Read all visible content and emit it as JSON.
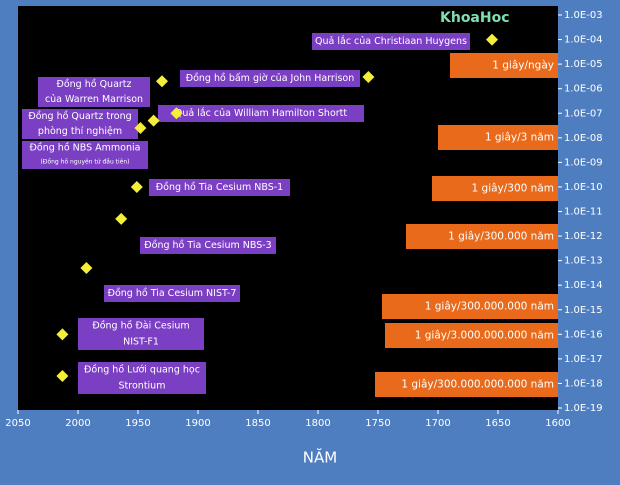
{
  "chart_data": {
    "type": "scatter",
    "x_label": "NĂM",
    "watermark": "KhoaHoc",
    "log_y": true,
    "xlim": [
      2050,
      1600
    ],
    "xticks": [
      2050,
      2000,
      1950,
      1900,
      1850,
      1800,
      1750,
      1700,
      1650,
      1600
    ],
    "ylim": [
      1e-19,
      0.001
    ],
    "yticks": [
      {
        "value": 0.001,
        "label": "1.0E-03"
      },
      {
        "value": 0.0001,
        "label": "1.0E-04"
      },
      {
        "value": 1e-05,
        "label": "1.0E-05"
      },
      {
        "value": 1e-06,
        "label": "1.0E-06"
      },
      {
        "value": 1e-07,
        "label": "1.0E-07"
      },
      {
        "value": 1e-08,
        "label": "1.0E-08"
      },
      {
        "value": 1e-09,
        "label": "1.0E-09"
      },
      {
        "value": 1e-10,
        "label": "1.0E-10"
      },
      {
        "value": 1e-11,
        "label": "1.0E-11"
      },
      {
        "value": 1e-12,
        "label": "1.0E-12"
      },
      {
        "value": 1e-13,
        "label": "1.0E-13"
      },
      {
        "value": 1e-14,
        "label": "1.0E-14"
      },
      {
        "value": 1e-15,
        "label": "1.0E-15"
      },
      {
        "value": 1e-16,
        "label": "1.0E-16"
      },
      {
        "value": 1e-17,
        "label": "1.0E-17"
      },
      {
        "value": 1e-18,
        "label": "1.0E-18"
      },
      {
        "value": 1e-19,
        "label": "1.0E-19"
      }
    ],
    "marker_color": "#f5ef3a",
    "label_color": "#7b3fc4",
    "note_color": "#e96a1a",
    "plot_color": "#000000",
    "points": [
      {
        "label": [
          "Quả lắc của Christiaan Huygens"
        ],
        "x": 1655,
        "y": 0.0001
      },
      {
        "label": [
          "Đồng hồ bấm giờ của John Harrison"
        ],
        "x": 1758,
        "y": 3e-06
      },
      {
        "label": [
          "Đồng hồ Quartz",
          "của Warren Marrison"
        ],
        "x": 1930,
        "y": 2e-06
      },
      {
        "label": [
          "Quả lắc của William Hamilton Shortt"
        ],
        "x": 1918,
        "y": 1e-07
      },
      {
        "label": [
          "Đồng hồ Quartz trong",
          "phòng thí nghiệm"
        ],
        "x": 1937,
        "y": 5e-08
      },
      {
        "label": [
          "Đồng hồ NBS Ammonia"
        ],
        "sublabel": "(Đồng hồ nguyên tử đầu tiên)",
        "x": 1948,
        "y": 2.5e-08
      },
      {
        "label": [
          "Đồng hồ Tia Cesium NBS-1"
        ],
        "x": 1951,
        "y": 1e-10
      },
      {
        "label": [
          "Đồng hồ Tia Cesium NBS-3"
        ],
        "x": 1964,
        "y": 5e-12
      },
      {
        "label": [
          "Đồng hồ Tia Cesium NIST-7"
        ],
        "x": 1993,
        "y": 5e-14
      },
      {
        "label": [
          "Đồng hồ Đài Cesium",
          "NIST-F1"
        ],
        "x": 2013,
        "y": 1e-16
      },
      {
        "label": [
          "Đồng hồ Lưới quang học",
          "Strontium"
        ],
        "x": 2013,
        "y": 2e-18
      }
    ],
    "notes": [
      "1 giây/ngày",
      "1 giây/3 năm",
      "1 giây/300 năm",
      "1 giây/300.000 năm",
      "1 giây/300.000.000 năm",
      "1 giây/3.000.000.000 năm",
      "1 giây/300.000.000.000 năm"
    ]
  }
}
